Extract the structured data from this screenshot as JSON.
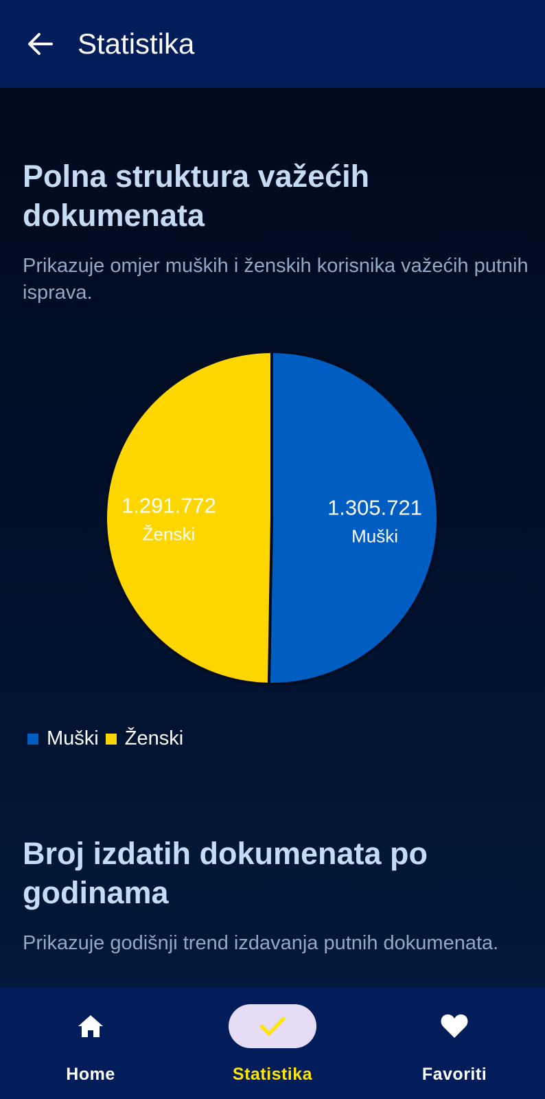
{
  "header": {
    "title": "Statistika",
    "back_icon": "arrow-left-icon"
  },
  "sections": [
    {
      "title": "Polna struktura važećih dokumenata",
      "description": "Prikazuje omjer muških i ženskih korisnika važećih putnih isprava."
    },
    {
      "title": "Broj izdatih dokumenata po godinama",
      "description": "Prikazuje godišnji trend izdavanja putnih dokumenata."
    }
  ],
  "chart_data": {
    "type": "pie",
    "title": "",
    "legend_placement": "bottom-left",
    "series": [
      {
        "name": "Muški",
        "value": 1305721,
        "label": "1.305.721",
        "color": "#005ec2"
      },
      {
        "name": "Ženski",
        "value": 1291772,
        "label": "1.291.772",
        "color": "#ffd600"
      }
    ]
  },
  "legend": [
    {
      "label": "Muški",
      "color": "#005ec2"
    },
    {
      "label": "Ženski",
      "color": "#ffd600"
    }
  ],
  "bottom_nav": [
    {
      "label": "Home",
      "icon": "home-icon",
      "active": false
    },
    {
      "label": "Statistika",
      "icon": "check-icon",
      "active": true
    },
    {
      "label": "Favoriti",
      "icon": "heart-icon",
      "active": false
    }
  ],
  "colors": {
    "header_bg": "#021d5a",
    "accent": "#ffe600",
    "active_pill": "#e6dcf5"
  }
}
